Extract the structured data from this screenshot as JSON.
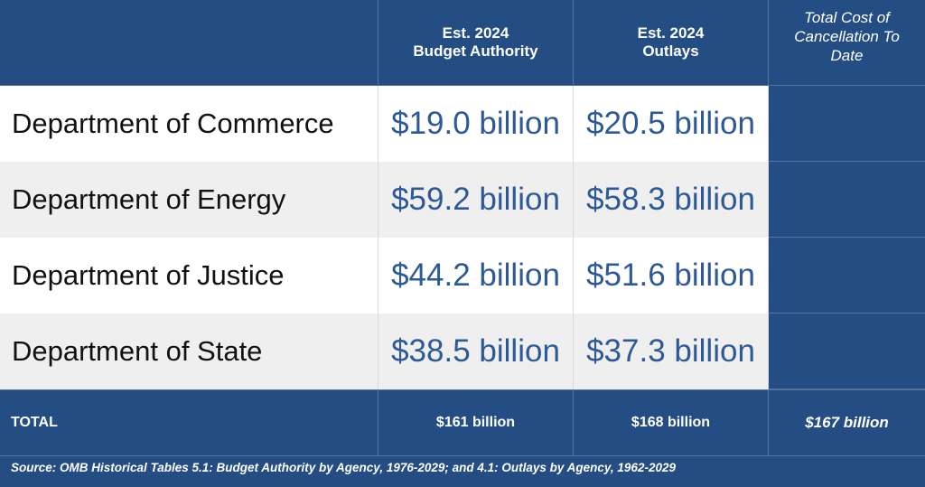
{
  "header": {
    "col1": "",
    "col2": "Est. 2024\nBudget Authority",
    "col3": "Est. 2024\nOutlays",
    "col4": "Total Cost of\nCancellation To\nDate"
  },
  "rows": [
    {
      "name": "Department of Commerce",
      "budget": "$19.0 billion",
      "outlays": "$20.5 billion",
      "cancellation": ""
    },
    {
      "name": "Department of Energy",
      "budget": "$59.2 billion",
      "outlays": "$58.3 billion",
      "cancellation": ""
    },
    {
      "name": "Department of Justice",
      "budget": "$44.2 billion",
      "outlays": "$51.6 billion",
      "cancellation": ""
    },
    {
      "name": "Department of State",
      "budget": "$38.5 billion",
      "outlays": "$37.3 billion",
      "cancellation": ""
    }
  ],
  "total": {
    "label": "TOTAL",
    "budget": "$161 billion",
    "outlays": "$168 billion",
    "cancellation": "$167 billion"
  },
  "source": "Source: OMB Historical Tables 5.1: Budget Authority by Agency, 1976-2029; and 4.1: Outlays by Agency, 1962-2029",
  "colors": {
    "navy": "#244d83",
    "value_blue": "#2d5a96",
    "row_gray": "#efefef"
  }
}
